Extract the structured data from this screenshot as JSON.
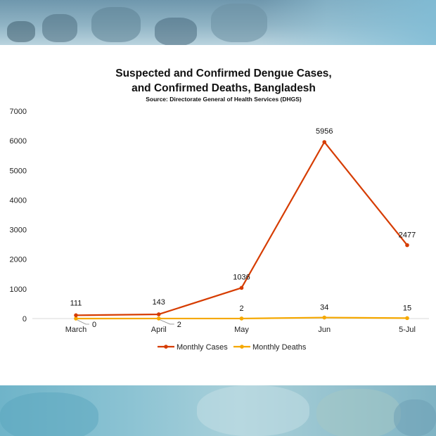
{
  "chart_data": {
    "type": "line",
    "title": "Suspected and Confirmed Dengue Cases,",
    "title_line2": "and Confirmed Deaths, Bangladesh",
    "subtitle": "Source: Directorate General of Health Services (DHGS)",
    "categories": [
      "March",
      "April",
      "May",
      "Jun",
      "5-Jul"
    ],
    "ylim": [
      0,
      7000
    ],
    "yticks": [
      0,
      1000,
      2000,
      3000,
      4000,
      5000,
      6000,
      7000
    ],
    "series": [
      {
        "name": "Monthly Cases",
        "color": "#d63c00",
        "values": [
          111,
          143,
          1036,
          5956,
          2477
        ],
        "labels": [
          "111",
          "143",
          "1036",
          "5956",
          "2477"
        ]
      },
      {
        "name": "Monthly Deaths",
        "color": "#f5a800",
        "values": [
          0,
          2,
          2,
          34,
          15
        ],
        "labels": [
          "0",
          "2",
          "2",
          "34",
          "15"
        ]
      }
    ],
    "legend_position": "bottom"
  }
}
